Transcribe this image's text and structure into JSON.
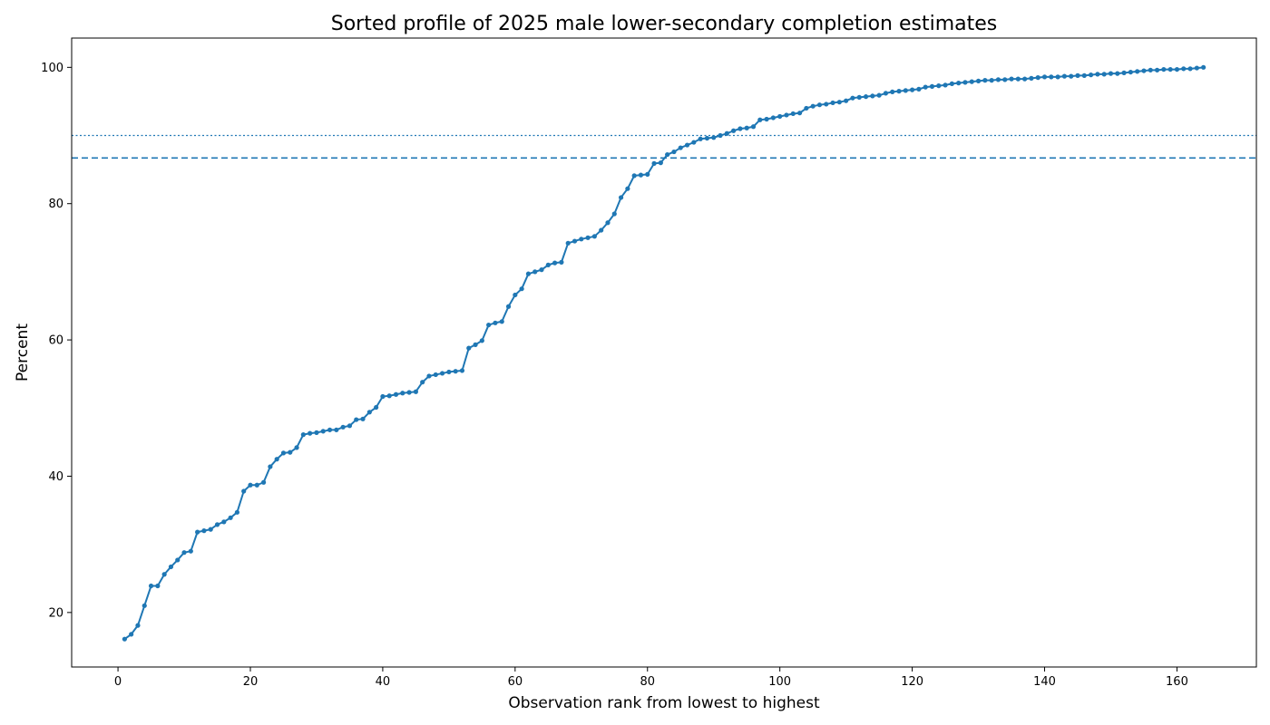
{
  "chart_data": {
    "type": "line",
    "title": "Sorted profile of 2025 male lower-secondary completion estimates",
    "xlabel": "Observation rank from lowest to highest",
    "ylabel": "Percent",
    "xlim": [
      -7,
      172
    ],
    "ylim": [
      12,
      104.3
    ],
    "xticks": [
      0,
      20,
      40,
      60,
      80,
      100,
      120,
      140,
      160
    ],
    "yticks": [
      20,
      40,
      60,
      80,
      100
    ],
    "grid": false,
    "legend": "none",
    "colors": {
      "line": "#1f77b4"
    },
    "reference_lines": [
      {
        "y": 86.7,
        "style": "dashed"
      },
      {
        "y": 90.0,
        "style": "dotted"
      }
    ],
    "series": [
      {
        "x": [
          1,
          2,
          3,
          4,
          5,
          6,
          7,
          8,
          9,
          10,
          11,
          12,
          13,
          14,
          15,
          16,
          17,
          18,
          19,
          20,
          21,
          22,
          23,
          24,
          25,
          26,
          27,
          28,
          29,
          30,
          31,
          32,
          33,
          34,
          35,
          36,
          37,
          38,
          39,
          40,
          41,
          42,
          43,
          44,
          45,
          46,
          47,
          48,
          49,
          50,
          51,
          52,
          53,
          54,
          55,
          56,
          57,
          58,
          59,
          60,
          61,
          62,
          63,
          64,
          65,
          66,
          67,
          68,
          69,
          70,
          71,
          72,
          73,
          74,
          75,
          76,
          77,
          78,
          79,
          80,
          81,
          82,
          83,
          84,
          85,
          86,
          87,
          88,
          89,
          90,
          91,
          92,
          93,
          94,
          95,
          96,
          97,
          98,
          99,
          100,
          101,
          102,
          103,
          104,
          105,
          106,
          107,
          108,
          109,
          110,
          111,
          112,
          113,
          114,
          115,
          116,
          117,
          118,
          119,
          120,
          121,
          122,
          123,
          124,
          125,
          126,
          127,
          128,
          129,
          130,
          131,
          132,
          133,
          134,
          135,
          136,
          137,
          138,
          139,
          140,
          141,
          142,
          143,
          144,
          145,
          146,
          147,
          148,
          149,
          150,
          151,
          152,
          153,
          154,
          155,
          156,
          157,
          158,
          159,
          160,
          161,
          162,
          163,
          164
        ],
        "values": [
          16.1,
          16.8,
          18.1,
          21.0,
          23.9,
          23.9,
          25.6,
          26.7,
          27.7,
          28.8,
          29.0,
          31.8,
          32.0,
          32.2,
          32.9,
          33.3,
          33.9,
          34.7,
          37.8,
          38.7,
          38.7,
          39.1,
          41.4,
          42.5,
          43.4,
          43.5,
          44.2,
          46.1,
          46.3,
          46.4,
          46.6,
          46.8,
          46.8,
          47.2,
          47.4,
          48.3,
          48.4,
          49.4,
          50.1,
          51.7,
          51.8,
          52.0,
          52.2,
          52.3,
          52.4,
          53.8,
          54.7,
          54.9,
          55.1,
          55.3,
          55.4,
          55.5,
          58.8,
          59.3,
          59.9,
          62.2,
          62.5,
          62.7,
          64.9,
          66.6,
          67.5,
          69.7,
          70.0,
          70.3,
          71.0,
          71.3,
          71.4,
          74.2,
          74.5,
          74.8,
          75.0,
          75.2,
          76.1,
          77.2,
          78.5,
          80.9,
          82.2,
          84.1,
          84.2,
          84.3,
          85.9,
          86.0,
          87.2,
          87.6,
          88.2,
          88.6,
          89.0,
          89.5,
          89.6,
          89.7,
          90.0,
          90.3,
          90.7,
          91.0,
          91.1,
          91.3,
          92.3,
          92.4,
          92.6,
          92.8,
          93.0,
          93.2,
          93.3,
          94.0,
          94.3,
          94.5,
          94.6,
          94.8,
          94.9,
          95.1,
          95.5,
          95.6,
          95.7,
          95.8,
          95.9,
          96.2,
          96.4,
          96.5,
          96.6,
          96.7,
          96.8,
          97.1,
          97.2,
          97.3,
          97.4,
          97.6,
          97.7,
          97.8,
          97.9,
          98.0,
          98.1,
          98.1,
          98.2,
          98.2,
          98.3,
          98.3,
          98.3,
          98.4,
          98.5,
          98.6,
          98.6,
          98.6,
          98.7,
          98.7,
          98.8,
          98.8,
          98.9,
          99.0,
          99.0,
          99.1,
          99.1,
          99.2,
          99.3,
          99.4,
          99.5,
          99.6,
          99.6,
          99.7,
          99.7,
          99.7,
          99.8,
          99.8,
          99.9,
          100.0
        ]
      }
    ]
  }
}
